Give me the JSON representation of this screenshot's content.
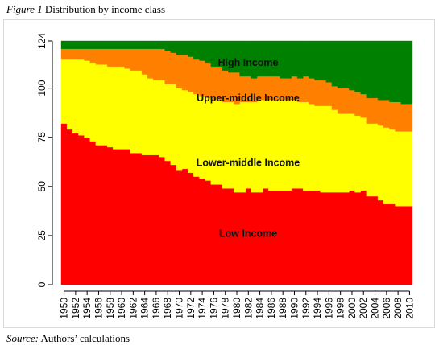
{
  "caption": {
    "figure_number": "Figure 1",
    "title": "Distribution by income class"
  },
  "source": {
    "label": "Source:",
    "text": "Authors’ calculations"
  },
  "colors": {
    "low": "#ff0000",
    "lower_middle": "#ffff00",
    "upper_middle": "#ff8000",
    "high": "#008000"
  },
  "chart_data": {
    "type": "area",
    "stacked": true,
    "step": true,
    "title": "Distribution by income class",
    "xlabel": "",
    "ylabel": "",
    "ylim": [
      0,
      124
    ],
    "yticks": [
      0,
      25,
      50,
      75,
      100,
      124
    ],
    "x": [
      1950,
      1951,
      1952,
      1953,
      1954,
      1955,
      1956,
      1957,
      1958,
      1959,
      1960,
      1961,
      1962,
      1963,
      1964,
      1965,
      1966,
      1967,
      1968,
      1969,
      1970,
      1971,
      1972,
      1973,
      1974,
      1975,
      1976,
      1977,
      1978,
      1979,
      1980,
      1981,
      1982,
      1983,
      1984,
      1985,
      1986,
      1987,
      1988,
      1989,
      1990,
      1991,
      1992,
      1993,
      1994,
      1995,
      1996,
      1997,
      1998,
      1999,
      2000,
      2001,
      2002,
      2003,
      2004,
      2005,
      2006,
      2007,
      2008,
      2009,
      2010
    ],
    "xticks": [
      1950,
      1952,
      1954,
      1956,
      1958,
      1960,
      1962,
      1964,
      1966,
      1968,
      1970,
      1972,
      1974,
      1976,
      1978,
      1980,
      1982,
      1984,
      1986,
      1988,
      1990,
      1992,
      1994,
      1996,
      1998,
      2000,
      2002,
      2004,
      2006,
      2008,
      2010
    ],
    "series": [
      {
        "name": "Low Income",
        "color_key": "low",
        "values": [
          82,
          79,
          77,
          76,
          75,
          73,
          71,
          71,
          70,
          69,
          69,
          69,
          67,
          67,
          66,
          66,
          66,
          65,
          63,
          61,
          58,
          59,
          57,
          55,
          54,
          53,
          51,
          51,
          49,
          49,
          47,
          47,
          49,
          47,
          47,
          49,
          48,
          48,
          48,
          48,
          49,
          49,
          48,
          48,
          48,
          47,
          47,
          47,
          47,
          47,
          48,
          47,
          48,
          45,
          45,
          43,
          41,
          41,
          40,
          40,
          40
        ]
      },
      {
        "name": "Lower-middle Income",
        "color_key": "lower_middle",
        "values": [
          33,
          36,
          38,
          39,
          39,
          40,
          41,
          41,
          41,
          42,
          42,
          41,
          42,
          42,
          41,
          39,
          38,
          39,
          39,
          41,
          42,
          40,
          41,
          42,
          42,
          42,
          43,
          43,
          44,
          44,
          45,
          46,
          44,
          46,
          47,
          45,
          46,
          46,
          46,
          46,
          45,
          44,
          45,
          44,
          43,
          44,
          44,
          42,
          40,
          40,
          39,
          39,
          37,
          37,
          37,
          38,
          39,
          38,
          38,
          38,
          38
        ]
      },
      {
        "name": "Upper-middle Income",
        "color_key": "upper_middle",
        "values": [
          5,
          5,
          5,
          5,
          6,
          7,
          8,
          8,
          9,
          9,
          9,
          10,
          11,
          11,
          13,
          15,
          16,
          16,
          17,
          16,
          17,
          18,
          18,
          18,
          18,
          18,
          17,
          17,
          16,
          15,
          16,
          13,
          13,
          12,
          12,
          12,
          12,
          12,
          11,
          11,
          12,
          12,
          13,
          13,
          13,
          13,
          12,
          12,
          13,
          13,
          12,
          12,
          12,
          13,
          13,
          13,
          14,
          14,
          15,
          14,
          14
        ]
      },
      {
        "name": "High Income",
        "color_key": "high",
        "values": [
          4,
          4,
          4,
          4,
          4,
          4,
          4,
          4,
          4,
          4,
          4,
          4,
          4,
          4,
          4,
          4,
          4,
          4,
          5,
          6,
          7,
          7,
          8,
          9,
          10,
          11,
          13,
          13,
          15,
          16,
          16,
          18,
          18,
          19,
          18,
          18,
          18,
          18,
          19,
          19,
          18,
          19,
          18,
          19,
          20,
          20,
          21,
          23,
          24,
          24,
          25,
          26,
          27,
          29,
          29,
          30,
          30,
          31,
          31,
          32,
          32
        ]
      }
    ],
    "label_y": [
      26,
      62,
      95,
      113
    ],
    "legend": "none",
    "grid": false
  }
}
